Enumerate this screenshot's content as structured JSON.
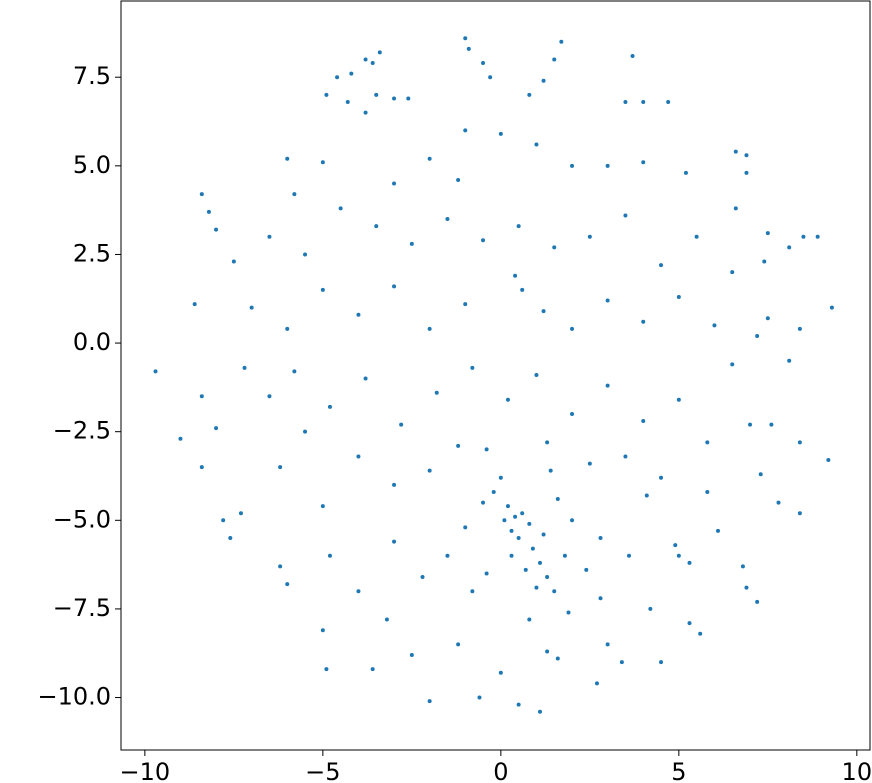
{
  "chart_data": {
    "type": "scatter",
    "color": "#1f77b4",
    "x": [
      -4.2,
      -3.8,
      -3.6,
      -3.4,
      -4.6,
      -4.9,
      -3.5,
      -3.0,
      -2.6,
      -3.8,
      -4.3,
      -1.0,
      -0.9,
      -0.5,
      -0.3,
      1.7,
      1.5,
      1.2,
      0.8,
      3.7,
      3.5,
      4.0,
      4.7,
      6.9,
      6.9,
      6.6,
      5.2,
      8.5,
      8.9,
      7.5,
      8.1,
      7.4,
      9.3,
      7.5,
      7.2,
      8.4,
      8.1,
      7.0,
      7.6,
      8.4,
      9.2,
      7.3,
      8.4,
      7.8,
      -8.4,
      -8.2,
      -8.0,
      -8.6,
      -9.7,
      -8.4,
      -9.0,
      -8.4,
      -7.8,
      -7.6,
      -7.3,
      -6.2,
      -7.5,
      -7.2,
      -8.0,
      -5.0,
      -4.9,
      -3.6,
      -2.0,
      -0.6,
      0.5,
      1.1,
      2.7,
      1.3,
      1.6,
      3.4,
      4.5,
      5.3,
      5.6,
      -3.2,
      -1.2,
      0.0,
      5.0,
      5.3,
      4.9,
      6.8,
      6.9,
      7.2,
      6.1,
      4.1,
      0.2,
      0.4,
      0.3,
      0.6,
      0.8,
      0.1,
      0.5,
      0.9,
      1.1,
      1.3,
      1.0,
      1.5,
      0.7,
      1.8,
      1.2,
      -0.2,
      0.0,
      -0.5,
      -1.0,
      2.0,
      2.4,
      1.6,
      0.3,
      -0.4,
      1.9,
      2.8,
      0.8,
      -0.8,
      -1.5,
      1.4,
      -6,
      -5,
      -3,
      -2,
      -1,
      0,
      1,
      2,
      3,
      4,
      -6.5,
      -5.5,
      -4.5,
      -3.5,
      -2.5,
      -1.5,
      -0.5,
      0.5,
      1.5,
      2.5,
      3.5,
      4.5,
      5.5,
      6.5,
      -7,
      -6,
      -5,
      -4,
      -3,
      -2,
      -1,
      0.4,
      0.6,
      1.2,
      2,
      3,
      4,
      5,
      6,
      6.5,
      -6.5,
      -5.8,
      -4.8,
      -3.8,
      -2.8,
      -1.8,
      -0.8,
      0.2,
      1.0,
      2.0,
      3.0,
      4.0,
      5.0,
      5.8,
      -6.2,
      -5.0,
      -4.0,
      -3.0,
      -2.0,
      -1.2,
      -0.4,
      1.3,
      2.5,
      3.5,
      4.5,
      5.8,
      -6.0,
      -4.8,
      -4.0,
      -3.0,
      -2.2,
      2.8,
      3.6,
      4.2,
      -2.5,
      3.0,
      -5.5,
      6.6,
      -5.8,
      -1.2
    ],
    "values": [
      7.6,
      8.0,
      7.9,
      8.2,
      7.5,
      7.0,
      7.0,
      6.9,
      6.9,
      6.5,
      6.8,
      8.6,
      8.3,
      7.9,
      7.5,
      8.5,
      8.0,
      7.4,
      7.0,
      8.1,
      6.8,
      6.8,
      6.8,
      5.3,
      4.8,
      5.4,
      4.8,
      3.0,
      3.0,
      3.1,
      2.7,
      2.3,
      1.0,
      0.7,
      0.2,
      0.4,
      -0.5,
      -2.3,
      -2.3,
      -2.8,
      -3.3,
      -3.7,
      -4.8,
      -4.5,
      4.2,
      3.7,
      3.2,
      1.1,
      -0.8,
      -1.5,
      -2.7,
      -3.5,
      -5.0,
      -5.5,
      -4.8,
      -6.3,
      2.3,
      -0.7,
      -2.4,
      -8.1,
      -9.2,
      -9.2,
      -10.1,
      -10.0,
      -10.2,
      -10.4,
      -9.6,
      -8.7,
      -8.9,
      -9.0,
      -9.0,
      -7.9,
      -8.2,
      -7.8,
      -8.5,
      -9.3,
      -6.0,
      -6.2,
      -5.7,
      -6.3,
      -6.9,
      -7.3,
      -5.3,
      -4.3,
      -4.6,
      -4.9,
      -5.3,
      -4.8,
      -5.1,
      -5.0,
      -5.5,
      -5.8,
      -6.2,
      -6.6,
      -6.9,
      -7.0,
      -6.4,
      -6.0,
      -5.4,
      -4.2,
      -3.8,
      -4.5,
      -5.2,
      -5.0,
      -6.4,
      -4.4,
      -6.0,
      -6.5,
      -7.6,
      -7.2,
      -7.8,
      -7.0,
      -6.0,
      -3.6,
      5.2,
      5.1,
      4.5,
      5.2,
      6.0,
      5.9,
      5.6,
      5.0,
      5.0,
      5.1,
      3.0,
      2.5,
      3.8,
      3.3,
      2.8,
      3.5,
      2.9,
      3.3,
      2.7,
      3.0,
      3.6,
      2.2,
      3.0,
      2.0,
      1.0,
      0.4,
      1.5,
      0.8,
      1.6,
      0.4,
      1.1,
      1.9,
      1.5,
      0.9,
      0.4,
      1.2,
      0.6,
      1.3,
      0.5,
      -0.6,
      -1.5,
      -0.8,
      -1.8,
      -1.0,
      -2.3,
      -1.4,
      -0.7,
      -1.6,
      -0.9,
      -2.0,
      -1.2,
      -2.2,
      -1.6,
      -2.8,
      -3.5,
      -4.6,
      -3.2,
      -4.0,
      -3.6,
      -2.9,
      -3.0,
      -2.8,
      -3.4,
      -3.2,
      -3.8,
      -4.2,
      -6.8,
      -6.0,
      -7.0,
      -5.6,
      -6.6,
      -5.5,
      -6.0,
      -7.5,
      -8.8,
      -8.5,
      -2.5,
      3.8,
      4.2,
      4.6
    ],
    "xlim": [
      -10.67,
      10.37
    ],
    "ylim": [
      -11.48,
      9.65
    ],
    "xticks": [
      {
        "value": -10,
        "label": "−10"
      },
      {
        "value": -5,
        "label": "−5"
      },
      0,
      5,
      10
    ],
    "yticks": [
      7.5,
      {
        "value": 5,
        "label": "5.0"
      },
      2.5,
      {
        "value": 0,
        "label": "0.0"
      },
      {
        "value": -2.5,
        "label": "−2.5"
      },
      {
        "value": -5,
        "label": "−5.0"
      },
      {
        "value": -7.5,
        "label": "−7.5"
      },
      {
        "value": -10,
        "label": "−10.0"
      }
    ]
  }
}
